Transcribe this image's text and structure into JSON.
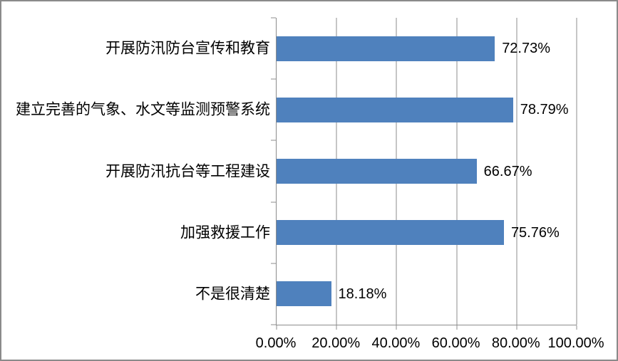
{
  "chart_data": {
    "type": "bar",
    "orientation": "horizontal",
    "title": "",
    "xlabel": "",
    "ylabel": "",
    "categories": [
      "开展防汛防台宣传和教育",
      "建立完善的气象、水文等监测预警系统",
      "开展防汛抗台等工程建设",
      "加强救援工作",
      "不是很清楚"
    ],
    "values": [
      72.73,
      78.79,
      66.67,
      75.76,
      18.18
    ],
    "data_labels": [
      "72.73%",
      "78.79%",
      "66.67%",
      "75.76%",
      "18.18%"
    ],
    "x_axis_tick_labels": [
      "0.00%",
      "20.00%",
      "40.00%",
      "60.00%",
      "80.00%",
      "100.00%"
    ],
    "x_axis_tick_values": [
      0,
      20,
      40,
      60,
      80,
      100
    ],
    "xlim": [
      0,
      100
    ],
    "grid": "vertical-gridlines-on",
    "legend": "none",
    "colors": {
      "bar": "#4F81BD",
      "axis": "#8C8C8C",
      "gridline": "#8C8C8C",
      "frame_border": "#8A8A8A",
      "text": "#000000",
      "background": "#FFFFFF"
    }
  }
}
